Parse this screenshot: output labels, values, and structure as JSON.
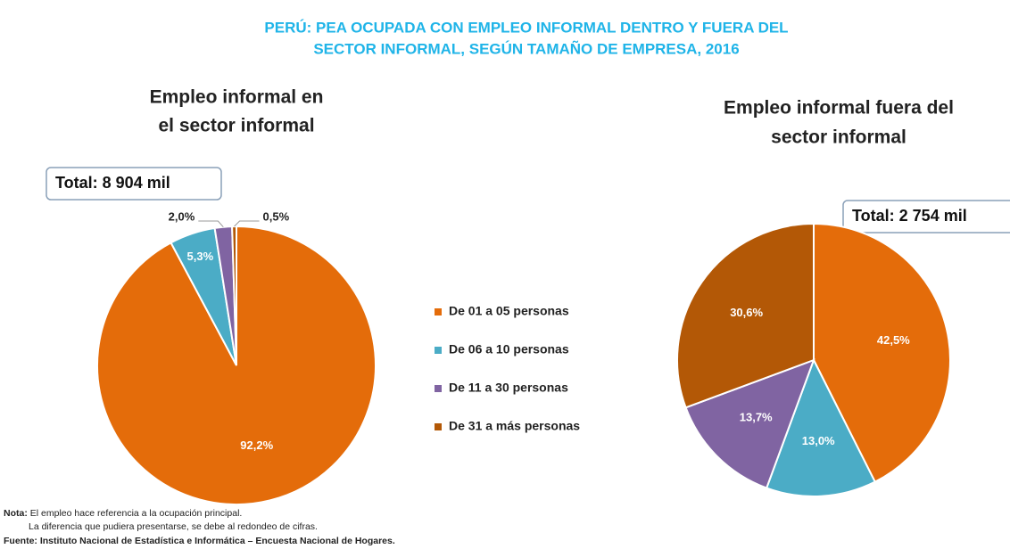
{
  "title": [
    "PERÚ: PEA OCUPADA CON EMPLEO INFORMAL DENTRO Y FUERA DEL",
    "SECTOR INFORMAL, SEGÚN TAMAÑO DE EMPRESA, 2016"
  ],
  "legend": {
    "labels": [
      "De 01 a 05 personas",
      "De 06 a 10 personas",
      "De 11 a 30 personas",
      "De 31 a más personas"
    ],
    "colors": [
      "#e46c0a",
      "#4bacc6",
      "#8064a2",
      "#b35806"
    ]
  },
  "chart_data": [
    {
      "type": "pie",
      "title": [
        "Empleo informal en",
        "el sector informal"
      ],
      "annotation": "Total: 8 904 mil",
      "values": [
        92.2,
        5.3,
        2.0,
        0.5
      ],
      "value_labels": [
        "92,2%",
        "5,3%",
        "2,0%",
        "0,5%"
      ]
    },
    {
      "type": "pie",
      "title": [
        "Empleo informal fuera del",
        "sector informal"
      ],
      "annotation": "Total: 2 754 mil",
      "values": [
        42.5,
        13.0,
        13.7,
        30.6
      ],
      "value_labels": [
        "42,5%",
        "13,0%",
        "13,7%",
        "30,6%"
      ]
    }
  ],
  "notes": {
    "label": "Nota:",
    "lines": [
      "El empleo hace referencia a la ocupación principal.",
      "La diferencia que pudiera presentarse, se debe al redondeo de cifras."
    ]
  },
  "source": "Fuente: Instituto Nacional de Estadística e Informática – Encuesta Nacional de Hogares."
}
